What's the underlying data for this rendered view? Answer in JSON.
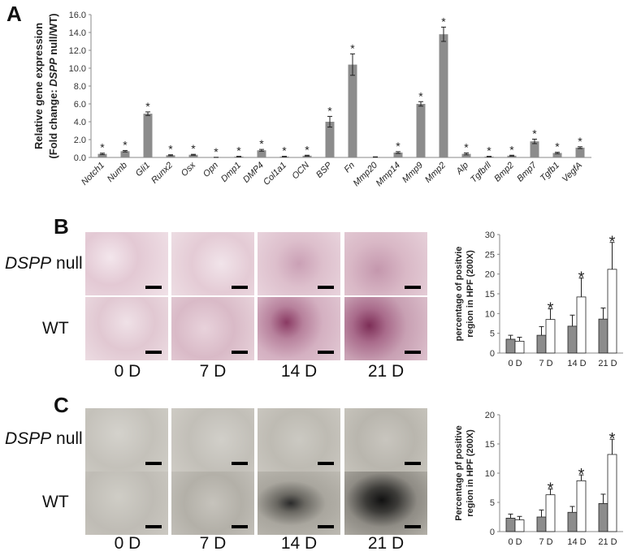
{
  "panels": {
    "a": {
      "letter": "A"
    },
    "b": {
      "letter": "B"
    },
    "c": {
      "letter": "C"
    }
  },
  "row_labels": {
    "null_italic": "DSPP",
    "null_rest": " null",
    "wt": "WT"
  },
  "day_labels": [
    "0 D",
    "7 D",
    "14 D",
    "21 D"
  ],
  "colors": {
    "grey_bar": "#8c8c8c",
    "white_bar": "#ffffff",
    "stain_pink": "#e6cfd8",
    "stain_dark": "#8a3a63",
    "silver_light": "#c9c7c1",
    "silver_dark": "#222222"
  },
  "chart_data": [
    {
      "type": "bar",
      "ylabel_line1": "Relative gene expression",
      "ylabel_line2_prefix": "(Fold change: ",
      "ylabel_line2_italic": "DSPP",
      "ylabel_line2_suffix": " null/WT)",
      "ylim": [
        0,
        16
      ],
      "yticks": [
        "0.0",
        "2.0",
        "4.0",
        "6.0",
        "8.0",
        "10.0",
        "12.0",
        "14.0",
        "16.0"
      ],
      "categories": [
        "Notch1",
        "Numb",
        "Gli1",
        "Runx2",
        "Osx",
        "Opn",
        "Dmp1",
        "DMP4",
        "Col1a1",
        "OCN",
        "BSP",
        "Fn",
        "Mmp20",
        "Mmp14",
        "Mmp9",
        "Mmp2",
        "Alp",
        "Tgfbrll",
        "Bmp2",
        "Bmp7",
        "Tgfb1",
        "VegfA"
      ],
      "values": [
        0.4,
        0.7,
        4.9,
        0.25,
        0.3,
        0.0,
        0.1,
        0.8,
        0.1,
        0.2,
        4.0,
        10.4,
        0.05,
        0.55,
        6.0,
        13.8,
        0.4,
        0.1,
        0.2,
        1.8,
        0.5,
        1.1
      ],
      "errors": [
        0.08,
        0.08,
        0.2,
        0.05,
        0.05,
        0.02,
        0.03,
        0.1,
        0.03,
        0.05,
        0.6,
        1.2,
        0.02,
        0.1,
        0.25,
        0.8,
        0.1,
        0.03,
        0.05,
        0.25,
        0.08,
        0.1
      ],
      "significant": [
        true,
        true,
        true,
        true,
        true,
        true,
        true,
        true,
        true,
        true,
        true,
        true,
        false,
        true,
        true,
        true,
        true,
        true,
        true,
        true,
        true,
        true
      ],
      "star": "*"
    },
    {
      "type": "bar",
      "ylabel_line1": "percentage of positvie",
      "ylabel_line2": "region in HPF (200X)",
      "ylim": [
        0,
        30
      ],
      "yticks": [
        "0",
        "5",
        "10",
        "15",
        "20",
        "25",
        "30"
      ],
      "categories": [
        "0 D",
        "7 D",
        "14 D",
        "21 D"
      ],
      "series": [
        {
          "values": [
            3.5,
            4.5,
            6.8,
            8.6
          ],
          "errors": [
            1.0,
            2.2,
            2.8,
            2.8
          ]
        },
        {
          "values": [
            3.0,
            8.5,
            14.2,
            21.2
          ],
          "errors": [
            1.0,
            2.7,
            4.8,
            6.8
          ]
        }
      ],
      "significant": [
        false,
        true,
        true,
        true
      ],
      "star": "*"
    },
    {
      "type": "bar",
      "ylabel_line1": "Percentage pf positive",
      "ylabel_line2": "region in HPF (200X)",
      "ylim": [
        0,
        20
      ],
      "yticks": [
        "0",
        "5",
        "10",
        "15",
        "20"
      ],
      "categories": [
        "0 D",
        "7 D",
        "14 D",
        "21 D"
      ],
      "series": [
        {
          "values": [
            2.3,
            2.5,
            3.3,
            4.8
          ],
          "errors": [
            0.7,
            1.2,
            1.0,
            1.6
          ]
        },
        {
          "values": [
            2.0,
            6.3,
            8.7,
            13.2
          ],
          "errors": [
            0.6,
            1.0,
            1.0,
            2.6
          ]
        }
      ],
      "significant": [
        false,
        true,
        true,
        true
      ],
      "star": "*"
    }
  ]
}
